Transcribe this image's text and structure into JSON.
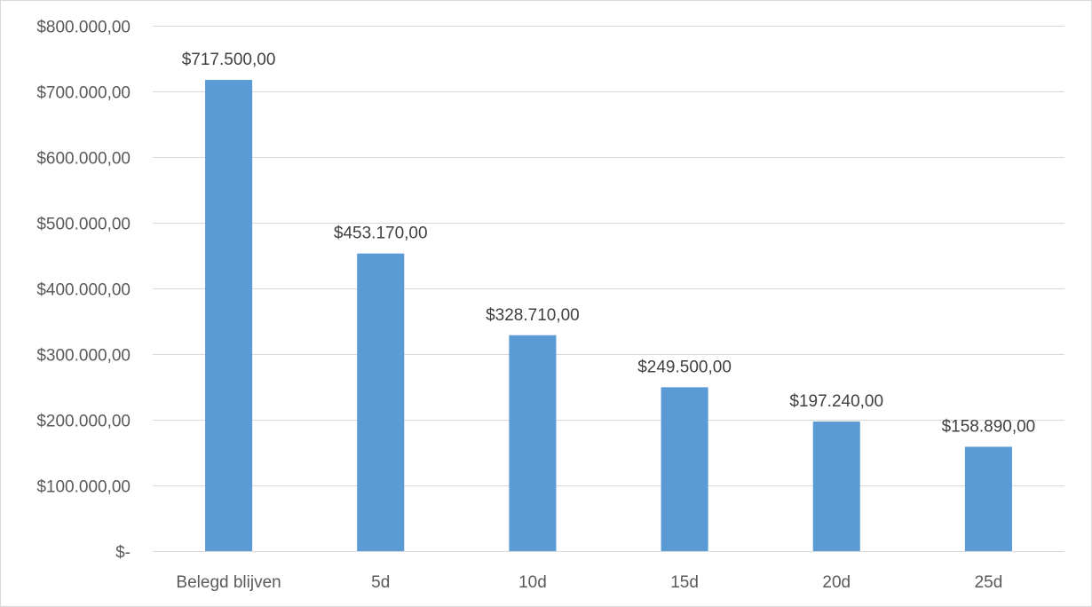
{
  "chart_data": {
    "type": "bar",
    "categories": [
      "Belegd blijven",
      "5d",
      "10d",
      "15d",
      "20d",
      "25d"
    ],
    "values": [
      717500,
      453170,
      328710,
      249500,
      197240,
      158890
    ],
    "data_labels": [
      "$717.500,00",
      "$453.170,00",
      "$328.710,00",
      "$249.500,00",
      "$197.240,00",
      "$158.890,00"
    ],
    "y_ticks": [
      0,
      100000,
      200000,
      300000,
      400000,
      500000,
      600000,
      700000,
      800000
    ],
    "y_tick_labels": [
      "$-",
      "$100.000,00",
      "$200.000,00",
      "$300.000,00",
      "$400.000,00",
      "$500.000,00",
      "$600.000,00",
      "$700.000,00",
      "$800.000,00"
    ],
    "title": "",
    "xlabel": "",
    "ylabel": "",
    "ylim": [
      0,
      800000
    ],
    "grid": true,
    "legend": "none",
    "bar_color": "#5b9bd5"
  }
}
